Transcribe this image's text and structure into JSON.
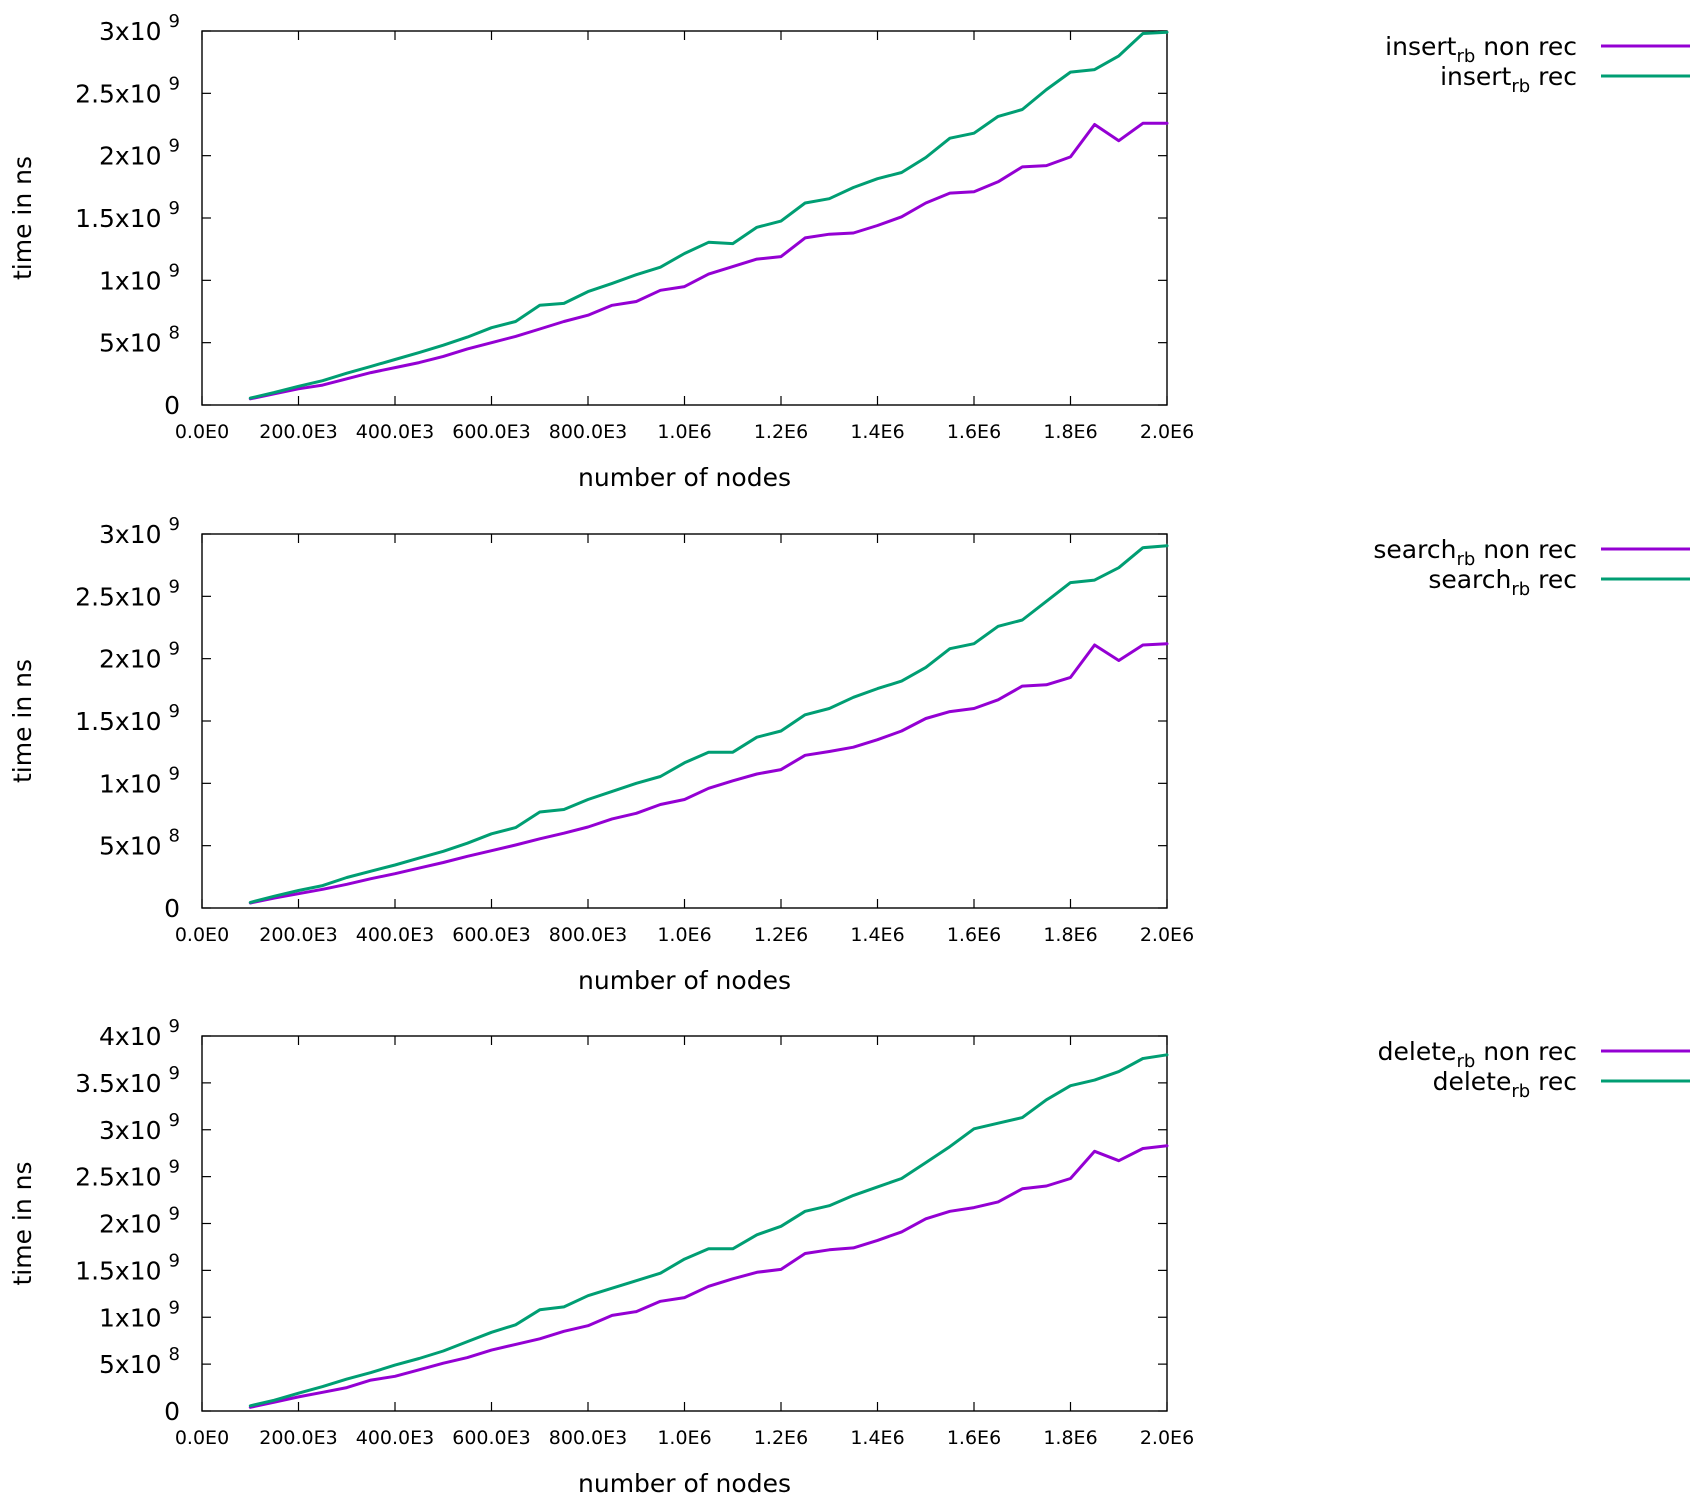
{
  "chart_data": [
    {
      "type": "line",
      "xlabel": "number of nodes",
      "ylabel": "time in ns",
      "xlim": [
        0,
        2000000
      ],
      "ylim": [
        0,
        3000000000
      ],
      "xticks": [
        {
          "value": 0,
          "label": "0.0E0"
        },
        {
          "value": 200000,
          "label": "200.0E3"
        },
        {
          "value": 400000,
          "label": "400.0E3"
        },
        {
          "value": 600000,
          "label": "600.0E3"
        },
        {
          "value": 800000,
          "label": "800.0E3"
        },
        {
          "value": 1000000,
          "label": "1.0E6"
        },
        {
          "value": 1200000,
          "label": "1.2E6"
        },
        {
          "value": 1400000,
          "label": "1.4E6"
        },
        {
          "value": 1600000,
          "label": "1.6E6"
        },
        {
          "value": 1800000,
          "label": "1.8E6"
        },
        {
          "value": 2000000,
          "label": "2.0E6"
        }
      ],
      "yticks": [
        {
          "value": 0,
          "label": "0"
        },
        {
          "value": 500000000,
          "mant": "5x10",
          "exp": "8"
        },
        {
          "value": 1000000000,
          "mant": "1x10",
          "exp": "9"
        },
        {
          "value": 1500000000,
          "mant": "1.5x10",
          "exp": "9"
        },
        {
          "value": 2000000000,
          "mant": "2x10",
          "exp": "9"
        },
        {
          "value": 2500000000,
          "mant": "2.5x10",
          "exp": "9"
        },
        {
          "value": 3000000000,
          "mant": "3x10",
          "exp": "9"
        }
      ],
      "x": [
        100000,
        150000,
        200000,
        250000,
        300000,
        350000,
        400000,
        450000,
        500000,
        550000,
        600000,
        650000,
        700000,
        750000,
        800000,
        850000,
        900000,
        950000,
        1000000,
        1050000,
        1100000,
        1150000,
        1200000,
        1250000,
        1300000,
        1350000,
        1400000,
        1450000,
        1500000,
        1550000,
        1600000,
        1650000,
        1700000,
        1750000,
        1800000,
        1850000,
        1900000,
        1950000,
        2000000
      ],
      "legend_position": "right",
      "series": [
        {
          "name": "insert",
          "name_sub": "rb",
          "name_suffix": " non rec",
          "color": "#9400d3",
          "values": [
            50000000,
            90000000,
            130000000,
            160000000,
            210000000,
            260000000,
            300000000,
            340000000,
            390000000,
            450000000,
            500000000,
            550000000,
            610000000,
            670000000,
            720000000,
            800000000,
            830000000,
            920000000,
            950000000,
            1050000000,
            1110000000,
            1170000000,
            1190000000,
            1340000000,
            1370000000,
            1380000000,
            1440000000,
            1510000000,
            1620000000,
            1700000000,
            1710000000,
            1790000000,
            1910000000,
            1920000000,
            1990000000,
            2250000000,
            2120000000,
            2260000000,
            2260000000
          ]
        },
        {
          "name": "insert",
          "name_sub": "rb",
          "name_suffix": " rec",
          "color": "#009e73",
          "values": [
            55000000,
            100000000,
            150000000,
            195000000,
            255000000,
            310000000,
            365000000,
            420000000,
            480000000,
            545000000,
            620000000,
            670000000,
            800000000,
            815000000,
            910000000,
            975000000,
            1045000000,
            1105000000,
            1215000000,
            1305000000,
            1295000000,
            1425000000,
            1475000000,
            1620000000,
            1655000000,
            1745000000,
            1815000000,
            1865000000,
            1985000000,
            2140000000,
            2180000000,
            2315000000,
            2370000000,
            2530000000,
            2670000000,
            2690000000,
            2800000000,
            2980000000,
            2990000000
          ]
        }
      ]
    },
    {
      "type": "line",
      "xlabel": "number of nodes",
      "ylabel": "time in ns",
      "xlim": [
        0,
        2000000
      ],
      "ylim": [
        0,
        3000000000
      ],
      "xticks": [
        {
          "value": 0,
          "label": "0.0E0"
        },
        {
          "value": 200000,
          "label": "200.0E3"
        },
        {
          "value": 400000,
          "label": "400.0E3"
        },
        {
          "value": 600000,
          "label": "600.0E3"
        },
        {
          "value": 800000,
          "label": "800.0E3"
        },
        {
          "value": 1000000,
          "label": "1.0E6"
        },
        {
          "value": 1200000,
          "label": "1.2E6"
        },
        {
          "value": 1400000,
          "label": "1.4E6"
        },
        {
          "value": 1600000,
          "label": "1.6E6"
        },
        {
          "value": 1800000,
          "label": "1.8E6"
        },
        {
          "value": 2000000,
          "label": "2.0E6"
        }
      ],
      "yticks": [
        {
          "value": 0,
          "label": "0"
        },
        {
          "value": 500000000,
          "mant": "5x10",
          "exp": "8"
        },
        {
          "value": 1000000000,
          "mant": "1x10",
          "exp": "9"
        },
        {
          "value": 1500000000,
          "mant": "1.5x10",
          "exp": "9"
        },
        {
          "value": 2000000000,
          "mant": "2x10",
          "exp": "9"
        },
        {
          "value": 2500000000,
          "mant": "2.5x10",
          "exp": "9"
        },
        {
          "value": 3000000000,
          "mant": "3x10",
          "exp": "9"
        }
      ],
      "x": [
        100000,
        150000,
        200000,
        250000,
        300000,
        350000,
        400000,
        450000,
        500000,
        550000,
        600000,
        650000,
        700000,
        750000,
        800000,
        850000,
        900000,
        950000,
        1000000,
        1050000,
        1100000,
        1150000,
        1200000,
        1250000,
        1300000,
        1350000,
        1400000,
        1450000,
        1500000,
        1550000,
        1600000,
        1650000,
        1700000,
        1750000,
        1800000,
        1850000,
        1900000,
        1950000,
        2000000
      ],
      "legend_position": "right",
      "series": [
        {
          "name": "search",
          "name_sub": "rb",
          "name_suffix": " non rec",
          "color": "#9400d3",
          "values": [
            40000000,
            80000000,
            115000000,
            150000000,
            190000000,
            235000000,
            275000000,
            320000000,
            365000000,
            415000000,
            460000000,
            505000000,
            555000000,
            600000000,
            650000000,
            715000000,
            760000000,
            830000000,
            870000000,
            960000000,
            1020000000,
            1075000000,
            1110000000,
            1225000000,
            1255000000,
            1290000000,
            1350000000,
            1420000000,
            1520000000,
            1575000000,
            1600000000,
            1670000000,
            1780000000,
            1790000000,
            1850000000,
            2110000000,
            1985000000,
            2110000000,
            2120000000
          ]
        },
        {
          "name": "search",
          "name_sub": "rb",
          "name_suffix": " rec",
          "color": "#009e73",
          "values": [
            45000000,
            95000000,
            140000000,
            180000000,
            245000000,
            295000000,
            345000000,
            400000000,
            455000000,
            520000000,
            595000000,
            645000000,
            770000000,
            790000000,
            870000000,
            935000000,
            1000000000,
            1055000000,
            1165000000,
            1250000000,
            1250000000,
            1370000000,
            1420000000,
            1550000000,
            1600000000,
            1690000000,
            1760000000,
            1820000000,
            1930000000,
            2080000000,
            2120000000,
            2260000000,
            2310000000,
            2460000000,
            2610000000,
            2630000000,
            2730000000,
            2890000000,
            2905000000
          ]
        }
      ]
    },
    {
      "type": "line",
      "xlabel": "number of nodes",
      "ylabel": "time in ns",
      "xlim": [
        0,
        2000000
      ],
      "ylim": [
        0,
        4000000000
      ],
      "xticks": [
        {
          "value": 0,
          "label": "0.0E0"
        },
        {
          "value": 200000,
          "label": "200.0E3"
        },
        {
          "value": 400000,
          "label": "400.0E3"
        },
        {
          "value": 600000,
          "label": "600.0E3"
        },
        {
          "value": 800000,
          "label": "800.0E3"
        },
        {
          "value": 1000000,
          "label": "1.0E6"
        },
        {
          "value": 1200000,
          "label": "1.2E6"
        },
        {
          "value": 1400000,
          "label": "1.4E6"
        },
        {
          "value": 1600000,
          "label": "1.6E6"
        },
        {
          "value": 1800000,
          "label": "1.8E6"
        },
        {
          "value": 2000000,
          "label": "2.0E6"
        }
      ],
      "yticks": [
        {
          "value": 0,
          "label": "0"
        },
        {
          "value": 500000000,
          "mant": "5x10",
          "exp": "8"
        },
        {
          "value": 1000000000,
          "mant": "1x10",
          "exp": "9"
        },
        {
          "value": 1500000000,
          "mant": "1.5x10",
          "exp": "9"
        },
        {
          "value": 2000000000,
          "mant": "2x10",
          "exp": "9"
        },
        {
          "value": 2500000000,
          "mant": "2.5x10",
          "exp": "9"
        },
        {
          "value": 3000000000,
          "mant": "3x10",
          "exp": "9"
        },
        {
          "value": 3500000000,
          "mant": "3.5x10",
          "exp": "9"
        },
        {
          "value": 4000000000,
          "mant": "4x10",
          "exp": "9"
        }
      ],
      "x": [
        100000,
        150000,
        200000,
        250000,
        300000,
        350000,
        400000,
        450000,
        500000,
        550000,
        600000,
        650000,
        700000,
        750000,
        800000,
        850000,
        900000,
        950000,
        1000000,
        1050000,
        1100000,
        1150000,
        1200000,
        1250000,
        1300000,
        1350000,
        1400000,
        1450000,
        1500000,
        1550000,
        1600000,
        1650000,
        1700000,
        1750000,
        1800000,
        1850000,
        1900000,
        1950000,
        2000000
      ],
      "legend_position": "right",
      "series": [
        {
          "name": "delete",
          "name_sub": "rb",
          "name_suffix": " non rec",
          "color": "#9400d3",
          "values": [
            40000000,
            95000000,
            150000000,
            200000000,
            250000000,
            330000000,
            370000000,
            440000000,
            510000000,
            570000000,
            650000000,
            710000000,
            770000000,
            850000000,
            910000000,
            1020000000,
            1060000000,
            1170000000,
            1210000000,
            1330000000,
            1410000000,
            1480000000,
            1510000000,
            1680000000,
            1720000000,
            1740000000,
            1820000000,
            1910000000,
            2050000000,
            2130000000,
            2170000000,
            2230000000,
            2370000000,
            2400000000,
            2480000000,
            2770000000,
            2670000000,
            2800000000,
            2830000000
          ]
        },
        {
          "name": "delete",
          "name_sub": "rb",
          "name_suffix": " rec",
          "color": "#009e73",
          "values": [
            55000000,
            115000000,
            190000000,
            260000000,
            340000000,
            410000000,
            490000000,
            560000000,
            640000000,
            740000000,
            840000000,
            920000000,
            1080000000,
            1110000000,
            1230000000,
            1310000000,
            1390000000,
            1470000000,
            1620000000,
            1730000000,
            1730000000,
            1880000000,
            1970000000,
            2130000000,
            2190000000,
            2300000000,
            2390000000,
            2480000000,
            2650000000,
            2820000000,
            3010000000,
            3070000000,
            3130000000,
            3320000000,
            3470000000,
            3530000000,
            3620000000,
            3760000000,
            3800000000
          ]
        }
      ]
    }
  ]
}
